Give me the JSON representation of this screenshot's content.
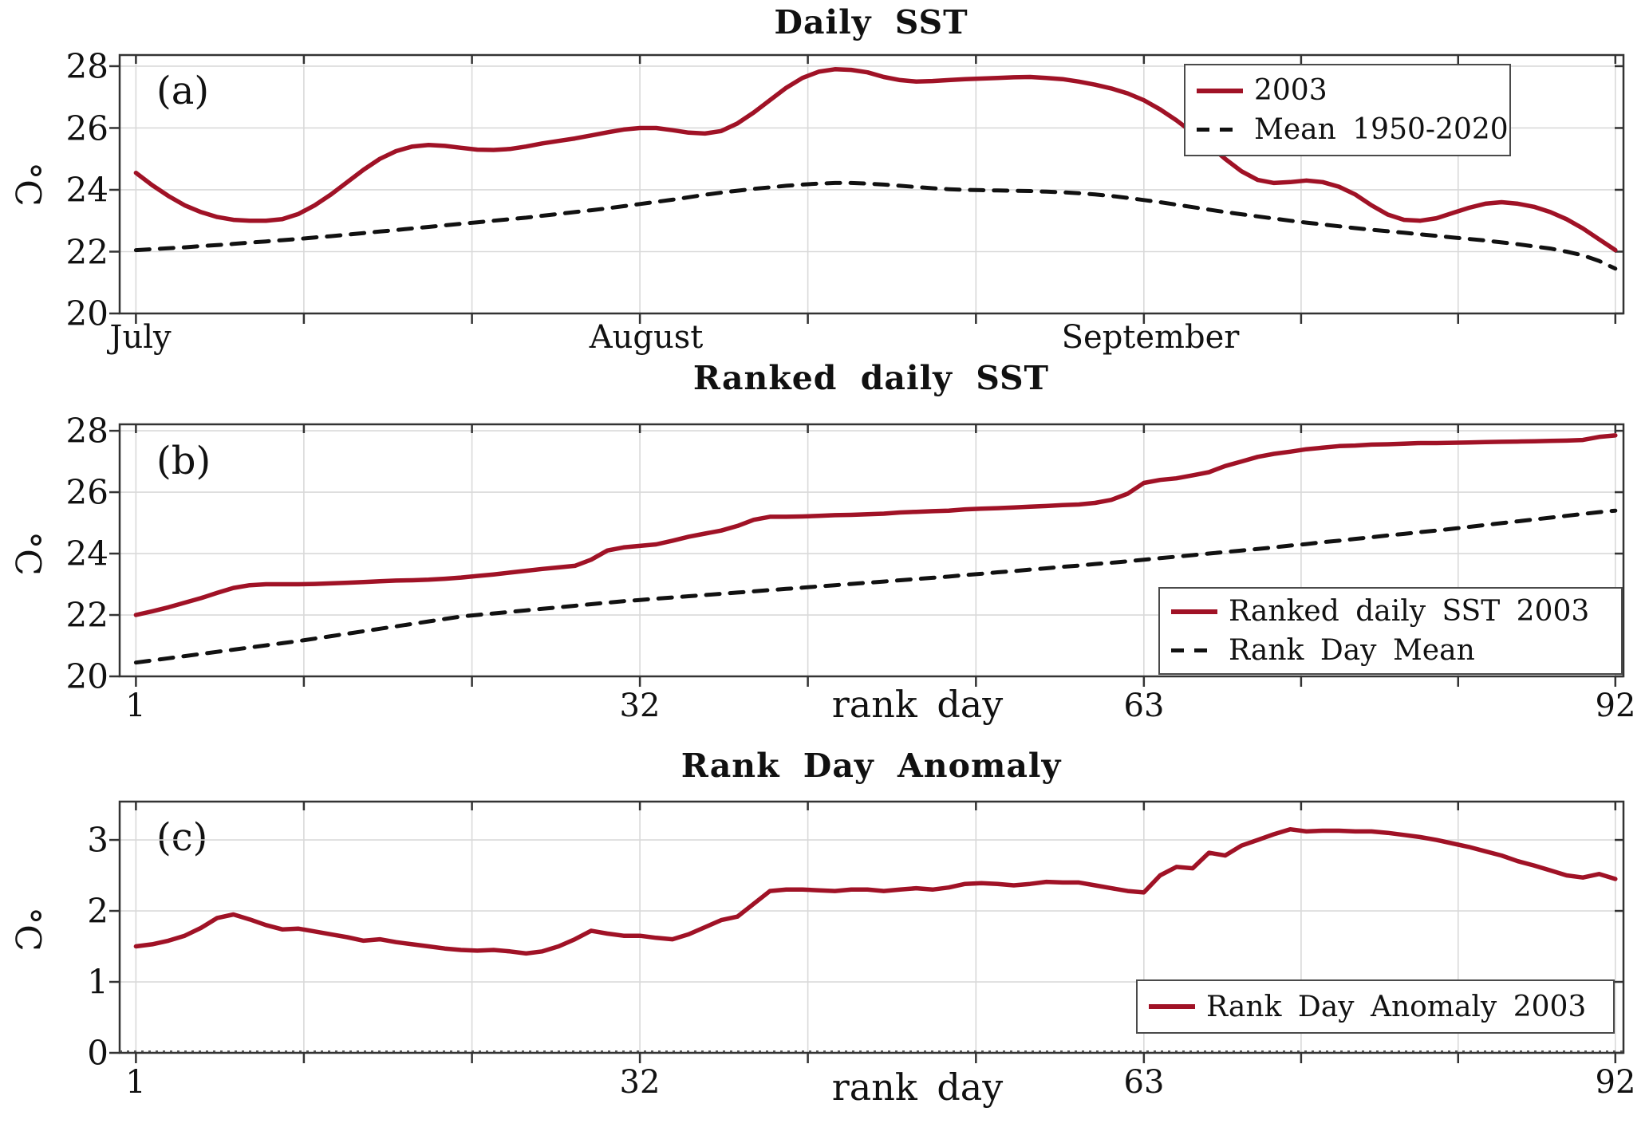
{
  "colors": {
    "series_red": "#a01226",
    "mean_black": "#111111",
    "grid": "#d9d9d9",
    "frame": "#333333",
    "zero_dots": "#555555"
  },
  "panels": [
    {
      "letter": "(a)",
      "title": "Daily SST",
      "ylabel": "°C",
      "ytick_labels": [
        "28",
        "26",
        "24",
        "22",
        "20"
      ],
      "xtick_labels": [
        "July",
        "August",
        "September"
      ],
      "legend": [
        {
          "label": "2003",
          "style": "solid"
        },
        {
          "label": "Mean 1950-2020",
          "style": "dashed"
        }
      ]
    },
    {
      "letter": "(b)",
      "title": "Ranked daily SST",
      "ylabel": "°C",
      "xlabel": "rank day",
      "ytick_labels": [
        "28",
        "26",
        "24",
        "22",
        "20"
      ],
      "xtick_labels": [
        "1",
        "32",
        "63",
        "92"
      ],
      "legend": [
        {
          "label": "Ranked daily SST 2003",
          "style": "solid"
        },
        {
          "label": "Rank Day Mean",
          "style": "dashed"
        }
      ]
    },
    {
      "letter": "(c)",
      "title": "Rank Day Anomaly",
      "ylabel": "°C",
      "xlabel": "rank day",
      "ytick_labels": [
        "3",
        "2",
        "1",
        "0"
      ],
      "xtick_labels": [
        "1",
        "32",
        "63",
        "92"
      ],
      "legend": [
        {
          "label": "Rank Day Anomaly 2003",
          "style": "solid"
        }
      ]
    }
  ],
  "chart_data": [
    {
      "type": "line",
      "title": "Daily SST",
      "ylabel": "degC",
      "x_axis": "day of season, 1 = July 1, 92 = Sep 30; labeled ticks at July(1), August(32), September(63)",
      "xlim": [
        0,
        92.5
      ],
      "ylim": [
        20,
        28.36
      ],
      "yticks": [
        20,
        22,
        24,
        26,
        28
      ],
      "xticks_major": [
        1,
        32,
        63
      ],
      "xticks_all": [
        1,
        11.33,
        21.67,
        32,
        42.33,
        52.67,
        63,
        72.67,
        82.33,
        92
      ],
      "grid": true,
      "legend_position": "top-right",
      "zero_dotted": false,
      "series": [
        {
          "name": "2003",
          "style": "solid",
          "values": [
            24.55,
            24.15,
            23.8,
            23.5,
            23.28,
            23.12,
            23.03,
            23.0,
            23.0,
            23.05,
            23.22,
            23.5,
            23.85,
            24.25,
            24.65,
            25.0,
            25.25,
            25.4,
            25.45,
            25.42,
            25.36,
            25.3,
            25.29,
            25.32,
            25.4,
            25.5,
            25.58,
            25.66,
            25.76,
            25.86,
            25.95,
            26.0,
            26.0,
            25.93,
            25.85,
            25.82,
            25.9,
            26.15,
            26.5,
            26.9,
            27.3,
            27.62,
            27.82,
            27.9,
            27.88,
            27.8,
            27.65,
            27.55,
            27.5,
            27.52,
            27.55,
            27.58,
            27.6,
            27.62,
            27.64,
            27.65,
            27.62,
            27.58,
            27.5,
            27.4,
            27.28,
            27.12,
            26.9,
            26.6,
            26.25,
            25.85,
            25.45,
            25.0,
            24.6,
            24.32,
            24.22,
            24.25,
            24.3,
            24.25,
            24.1,
            23.85,
            23.5,
            23.2,
            23.03,
            23.0,
            23.08,
            23.25,
            23.42,
            23.55,
            23.6,
            23.55,
            23.45,
            23.28,
            23.05,
            22.75,
            22.4,
            22.05
          ]
        },
        {
          "name": "Mean 1950-2020",
          "style": "dashed",
          "values": [
            22.05,
            22.08,
            22.11,
            22.14,
            22.18,
            22.21,
            22.25,
            22.29,
            22.33,
            22.37,
            22.41,
            22.46,
            22.5,
            22.55,
            22.6,
            22.65,
            22.7,
            22.75,
            22.8,
            22.85,
            22.9,
            22.95,
            23.0,
            23.05,
            23.1,
            23.16,
            23.22,
            23.28,
            23.34,
            23.4,
            23.47,
            23.54,
            23.61,
            23.68,
            23.76,
            23.84,
            23.91,
            23.97,
            24.03,
            24.08,
            24.13,
            24.17,
            24.2,
            24.22,
            24.22,
            24.2,
            24.17,
            24.13,
            24.09,
            24.05,
            24.02,
            24.0,
            23.99,
            23.98,
            23.97,
            23.96,
            23.94,
            23.92,
            23.89,
            23.85,
            23.8,
            23.74,
            23.67,
            23.6,
            23.52,
            23.44,
            23.36,
            23.28,
            23.21,
            23.14,
            23.07,
            23.0,
            22.94,
            22.88,
            22.82,
            22.76,
            22.71,
            22.66,
            22.61,
            22.56,
            22.51,
            22.46,
            22.41,
            22.36,
            22.3,
            22.24,
            22.17,
            22.1,
            22.0,
            21.88,
            21.7,
            21.45
          ]
        }
      ]
    },
    {
      "type": "line",
      "title": "Ranked daily SST",
      "ylabel": "degC",
      "x_axis": "rank day 1-92, labeled ticks at 1, 32, 63, 92",
      "xlim": [
        0,
        92.5
      ],
      "ylim": [
        20,
        28.21
      ],
      "yticks": [
        20,
        22,
        24,
        26,
        28
      ],
      "xticks_major": [
        1,
        32,
        63,
        92
      ],
      "xticks_all": [
        1,
        11.33,
        21.67,
        32,
        42.33,
        52.67,
        63,
        72.67,
        82.33,
        92
      ],
      "grid": true,
      "legend_position": "bottom-right",
      "zero_dotted": false,
      "series": [
        {
          "name": "Ranked daily SST 2003",
          "style": "solid",
          "values": [
            22.0,
            22.12,
            22.25,
            22.4,
            22.55,
            22.72,
            22.88,
            22.97,
            23.0,
            23.0,
            23.0,
            23.01,
            23.03,
            23.05,
            23.07,
            23.1,
            23.12,
            23.13,
            23.15,
            23.18,
            23.22,
            23.27,
            23.32,
            23.38,
            23.44,
            23.5,
            23.55,
            23.6,
            23.8,
            24.1,
            24.2,
            24.25,
            24.3,
            24.42,
            24.55,
            24.65,
            24.75,
            24.9,
            25.1,
            25.2,
            25.2,
            25.21,
            25.23,
            25.25,
            25.26,
            25.28,
            25.3,
            25.34,
            25.36,
            25.38,
            25.4,
            25.44,
            25.46,
            25.48,
            25.5,
            25.53,
            25.55,
            25.58,
            25.6,
            25.65,
            25.75,
            25.95,
            26.3,
            26.4,
            26.45,
            26.55,
            26.65,
            26.85,
            27.0,
            27.15,
            27.25,
            27.32,
            27.4,
            27.45,
            27.5,
            27.52,
            27.55,
            27.56,
            27.58,
            27.6,
            27.6,
            27.61,
            27.62,
            27.63,
            27.64,
            27.65,
            27.66,
            27.67,
            27.68,
            27.7,
            27.8,
            27.85
          ]
        },
        {
          "name": "Rank Day Mean",
          "style": "dashed",
          "values": [
            20.45,
            20.52,
            20.59,
            20.66,
            20.73,
            20.8,
            20.87,
            20.94,
            21.01,
            21.08,
            21.15,
            21.23,
            21.31,
            21.39,
            21.47,
            21.55,
            21.63,
            21.71,
            21.79,
            21.87,
            21.95,
            22.0,
            22.05,
            22.1,
            22.15,
            22.2,
            22.25,
            22.3,
            22.35,
            22.4,
            22.45,
            22.49,
            22.53,
            22.57,
            22.61,
            22.65,
            22.69,
            22.73,
            22.77,
            22.81,
            22.85,
            22.89,
            22.93,
            22.97,
            23.01,
            23.05,
            23.09,
            23.13,
            23.17,
            23.21,
            23.25,
            23.3,
            23.34,
            23.39,
            23.43,
            23.48,
            23.52,
            23.57,
            23.61,
            23.66,
            23.7,
            23.75,
            23.8,
            23.85,
            23.9,
            23.95,
            24.0,
            24.05,
            24.1,
            24.15,
            24.2,
            24.26,
            24.31,
            24.37,
            24.42,
            24.48,
            24.53,
            24.59,
            24.64,
            24.7,
            24.75,
            24.81,
            24.87,
            24.93,
            24.99,
            25.05,
            25.11,
            25.17,
            25.23,
            25.29,
            25.35,
            25.4
          ]
        }
      ]
    },
    {
      "type": "line",
      "title": "Rank Day Anomaly",
      "ylabel": "degC",
      "x_axis": "rank day 1-92, labeled ticks at 1, 32, 63, 92",
      "xlim": [
        0,
        92.5
      ],
      "ylim": [
        0,
        3.54
      ],
      "yticks": [
        0,
        1,
        2,
        3
      ],
      "xticks_major": [
        1,
        32,
        63,
        92
      ],
      "xticks_all": [
        1,
        11.33,
        21.67,
        32,
        42.33,
        52.67,
        63,
        72.67,
        82.33,
        92
      ],
      "grid": true,
      "legend_position": "bottom-right",
      "zero_dotted": true,
      "series": [
        {
          "name": "Rank Day Anomaly 2003",
          "style": "solid",
          "values": [
            1.5,
            1.53,
            1.58,
            1.65,
            1.76,
            1.9,
            1.95,
            1.88,
            1.8,
            1.74,
            1.75,
            1.71,
            1.67,
            1.63,
            1.58,
            1.6,
            1.56,
            1.53,
            1.5,
            1.47,
            1.45,
            1.44,
            1.45,
            1.43,
            1.4,
            1.43,
            1.5,
            1.6,
            1.72,
            1.68,
            1.65,
            1.65,
            1.62,
            1.6,
            1.67,
            1.77,
            1.87,
            1.92,
            2.1,
            2.28,
            2.3,
            2.3,
            2.29,
            2.28,
            2.3,
            2.3,
            2.28,
            2.3,
            2.32,
            2.3,
            2.33,
            2.38,
            2.39,
            2.38,
            2.36,
            2.38,
            2.41,
            2.4,
            2.4,
            2.36,
            2.32,
            2.28,
            2.26,
            2.5,
            2.62,
            2.6,
            2.82,
            2.78,
            2.92,
            3.0,
            3.08,
            3.15,
            3.12,
            3.13,
            3.13,
            3.12,
            3.12,
            3.1,
            3.07,
            3.04,
            3.0,
            2.95,
            2.9,
            2.84,
            2.78,
            2.7,
            2.64,
            2.57,
            2.5,
            2.47,
            2.52,
            2.45
          ]
        }
      ]
    }
  ]
}
